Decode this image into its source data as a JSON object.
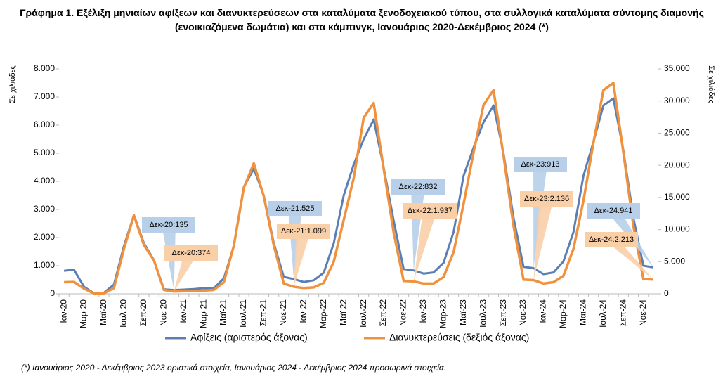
{
  "chart_data": {
    "type": "line",
    "title": "Γράφημα 1. Εξέλιξη μηνιαίων αφίξεων και διανυκτερεύσεων στα καταλύματα ξενοδοχειακού τύπου, στα συλλογικά καταλύματα σύντομης διαμονής (ενοικιαζόμενα δωμάτια) και στα κάμπινγκ, Ιανουάριος 2020-Δεκέμβριος 2024 (*)",
    "ylabel": "Σε χιλιάδες",
    "y2label": "Σε χιλιάδες",
    "footnote": "(*) Ιανουάριος 2020 - Δεκέμβριος 2023 οριστικά στοιχεία, Ιανουάριος 2024 - Δεκέμβριος 2024 προσωρινά στοιχεία.",
    "categories": [
      "Ιαν-20",
      null,
      "Μαρ-20",
      null,
      "Μαϊ-20",
      null,
      "Ιουλ-20",
      null,
      "Σεπ-20",
      null,
      "Νοε-20",
      null,
      "Ιαν-21",
      null,
      "Μαρ-21",
      null,
      "Μαϊ-21",
      null,
      "Ιουλ-21",
      null,
      "Σεπ-21",
      null,
      "Νοε-21",
      null,
      "Ιαν-22",
      null,
      "Μαρ-22",
      null,
      "Μαϊ-22",
      null,
      "Ιουλ-22",
      null,
      "Σεπ-22",
      null,
      "Νοε-22",
      null,
      "Ιαν-23",
      null,
      "Μαρ-23",
      null,
      "Μαϊ-23",
      null,
      "Ιουλ-23",
      null,
      "Σεπ-23",
      null,
      "Νοε-23",
      null,
      "Ιαν-24",
      null,
      "Μαρ-24",
      null,
      "Μαϊ-24",
      null,
      "Ιουλ-24",
      null,
      "Σεπ-24",
      null,
      "Νοε-24",
      null
    ],
    "series": [
      {
        "name": "Αφίξεις (αριστερός άξονας)",
        "color": "#5b7fb5",
        "axis": "y",
        "values": [
          820,
          860,
          250,
          20,
          40,
          330,
          1700,
          2800,
          1800,
          1200,
          160,
          135,
          150,
          170,
          200,
          200,
          550,
          1700,
          3800,
          4450,
          3500,
          1800,
          600,
          525,
          420,
          480,
          750,
          1800,
          3500,
          4600,
          5500,
          6200,
          4500,
          2600,
          880,
          832,
          720,
          760,
          1100,
          2200,
          4200,
          5200,
          6100,
          6700,
          5000,
          2700,
          960,
          913,
          700,
          760,
          1150,
          2200,
          4200,
          5400,
          6700,
          6950,
          5100,
          2700,
          1000,
          941
        ]
      },
      {
        "name": "Διανυκτερεύσεις (δεξιός άξονας)",
        "color": "#f0913e",
        "axis": "y2",
        "values": [
          1800,
          1850,
          800,
          50,
          80,
          900,
          7000,
          12200,
          7600,
          5200,
          600,
          374,
          400,
          450,
          500,
          600,
          1800,
          7500,
          16500,
          20300,
          15200,
          7500,
          1600,
          1099,
          900,
          1000,
          1700,
          5000,
          11500,
          18000,
          27400,
          29700,
          19500,
          9500,
          2000,
          1937,
          1600,
          1600,
          2600,
          6500,
          14000,
          22000,
          29400,
          31700,
          21500,
          10500,
          2200,
          2136,
          1600,
          1800,
          2800,
          7000,
          14500,
          23500,
          31700,
          32800,
          22000,
          10500,
          2300,
          2213
        ]
      }
    ],
    "ylim": [
      0,
      8000
    ],
    "yticks": [
      0,
      {
        "value": 1000,
        "label": "1.000"
      },
      {
        "value": 2000,
        "label": "2.000"
      },
      {
        "value": 3000,
        "label": "3.000"
      },
      {
        "value": 4000,
        "label": "4.000"
      },
      {
        "value": 5000,
        "label": "5.000"
      },
      {
        "value": 6000,
        "label": "6.000"
      },
      {
        "value": 7000,
        "label": "7.000"
      },
      {
        "value": 8000,
        "label": "8.000"
      }
    ],
    "y2lim": [
      0,
      35000
    ],
    "y2ticks": [
      0,
      {
        "value": 5000,
        "label": "5.000"
      },
      {
        "value": 10000,
        "label": "10.000"
      },
      {
        "value": 15000,
        "label": "15.000"
      },
      {
        "value": 20000,
        "label": "20.000"
      },
      {
        "value": 25000,
        "label": "25.000"
      },
      {
        "value": 30000,
        "label": "30.000"
      },
      {
        "value": 35000,
        "label": "35.000"
      }
    ],
    "annotations": [
      "Δεκ-20:135",
      "Δεκ-20:374",
      "Δεκ-21:525",
      "Δεκ-21:1.099",
      "Δεκ-22:832",
      "Δεκ-22:1.937",
      "Δεκ-23:913",
      "Δεκ-23:2.136",
      "Δεκ-24:941",
      "Δεκ-24:2.213"
    ]
  }
}
